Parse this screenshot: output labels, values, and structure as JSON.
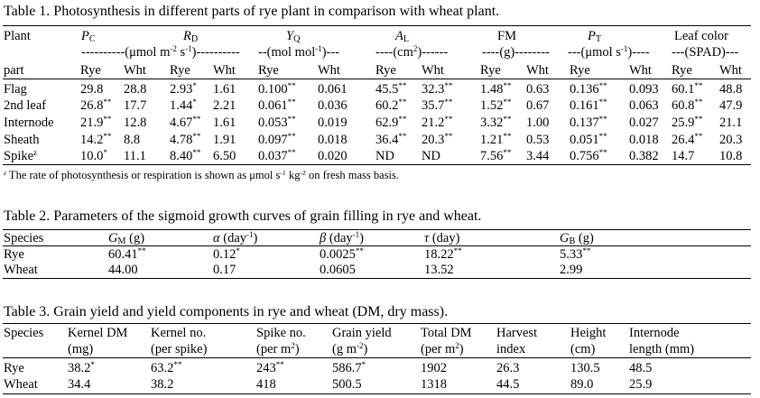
{
  "table1": {
    "caption": "Table 1. Photosynthesis in different parts of rye plant in comparison with wheat plant.",
    "hdr1": {
      "plant": "Plant",
      "pc": "P",
      "pc_sub": "C",
      "rd": "R",
      "rd_sub": "D",
      "yq": "Y",
      "yq_sub": "Q",
      "al": "A",
      "al_sub": "L",
      "fm": "FM",
      "pt": "P",
      "pt_sub": "T",
      "leaf": "Leaf color"
    },
    "hdr2": {
      "unit1_a": "----------(μmol m",
      "unit1_sup1": "-2",
      "unit1_b": " s",
      "unit1_sup2": "-1",
      "unit1_c": ")----------",
      "unit2_a": "--(mol mol",
      "unit2_sup": "-1",
      "unit2_b": ")---",
      "unit3_a": "----(cm",
      "unit3_sup": "2",
      "unit3_b": ")------",
      "unit4": "----(g)--------",
      "unit5_a": "---(μmol s",
      "unit5_sup": "-1",
      "unit5_b": ")----",
      "unit6": "---(SPAD)---"
    },
    "hdr3": {
      "part": "part",
      "rye": "Rye",
      "wht": "Wht"
    },
    "rows": [
      {
        "part": "Flag",
        "part_sup": "",
        "cells": [
          [
            "29.8",
            ""
          ],
          [
            "28.8",
            ""
          ],
          [
            "2.93",
            "*"
          ],
          [
            "1.61",
            ""
          ],
          [
            "0.100",
            "**"
          ],
          [
            "0.061",
            ""
          ],
          [
            "45.5",
            "**"
          ],
          [
            "32.3",
            "**"
          ],
          [
            "1.48",
            "**"
          ],
          [
            "0.63",
            ""
          ],
          [
            "0.136",
            "**"
          ],
          [
            "0.093",
            ""
          ],
          [
            "60.1",
            "**"
          ],
          [
            "48.8",
            ""
          ]
        ]
      },
      {
        "part": "2nd leaf",
        "part_sup": "",
        "cells": [
          [
            "26.8",
            "**"
          ],
          [
            "17.7",
            ""
          ],
          [
            "1.44",
            "*"
          ],
          [
            "2.21",
            ""
          ],
          [
            "0.061",
            "**"
          ],
          [
            "0.036",
            ""
          ],
          [
            "60.2",
            "**"
          ],
          [
            "35.7",
            "**"
          ],
          [
            "1.52",
            "**"
          ],
          [
            "0.67",
            ""
          ],
          [
            "0.161",
            "**"
          ],
          [
            "0.063",
            ""
          ],
          [
            "60.8",
            "**"
          ],
          [
            "47.9",
            ""
          ]
        ]
      },
      {
        "part": "Internode",
        "part_sup": "",
        "cells": [
          [
            "21.9",
            "**"
          ],
          [
            "12.8",
            ""
          ],
          [
            "4.67",
            "**"
          ],
          [
            "1.61",
            ""
          ],
          [
            "0.053",
            "**"
          ],
          [
            "0.019",
            ""
          ],
          [
            "62.9",
            "**"
          ],
          [
            "21.2",
            "**"
          ],
          [
            "3.32",
            "**"
          ],
          [
            "1.00",
            ""
          ],
          [
            "0.137",
            "**"
          ],
          [
            "0.027",
            ""
          ],
          [
            "25.9",
            "**"
          ],
          [
            "21.1",
            ""
          ]
        ]
      },
      {
        "part": "Sheath",
        "part_sup": "",
        "cells": [
          [
            "14.2",
            "**"
          ],
          [
            "8.8",
            ""
          ],
          [
            "4.78",
            "**"
          ],
          [
            "1.91",
            ""
          ],
          [
            "0.097",
            "**"
          ],
          [
            "0.018",
            ""
          ],
          [
            "36.4",
            "**"
          ],
          [
            "20.3",
            "**"
          ],
          [
            "1.21",
            "**"
          ],
          [
            "0.53",
            ""
          ],
          [
            "0.051",
            "**"
          ],
          [
            "0.018",
            ""
          ],
          [
            "26.4",
            "**"
          ],
          [
            "20.3",
            ""
          ]
        ]
      },
      {
        "part": "Spike",
        "part_sup": "z",
        "cells": [
          [
            "10.0",
            "*"
          ],
          [
            "11.1",
            ""
          ],
          [
            "8.40",
            "**"
          ],
          [
            "6.50",
            ""
          ],
          [
            "0.037",
            "**"
          ],
          [
            "0.020",
            ""
          ],
          [
            "ND",
            ""
          ],
          [
            "ND",
            ""
          ],
          [
            "7.56",
            "**"
          ],
          [
            "3.44",
            ""
          ],
          [
            "0.756",
            "**"
          ],
          [
            "0.382",
            ""
          ],
          [
            "14.7",
            ""
          ],
          [
            "10.8",
            ""
          ]
        ]
      }
    ],
    "footnote_sup": "z",
    "footnote_a": " The rate of photosynthesis or respiration is shown as μmol s",
    "footnote_sup1": "-1",
    "footnote_b": " kg",
    "footnote_sup2": "-2",
    "footnote_c": " on fresh mass basis."
  },
  "table2": {
    "caption": "Table 2. Parameters of the sigmoid growth curves of grain filling in rye and wheat.",
    "hdr": {
      "species": "Species",
      "gm": "G",
      "gm_sub": "M",
      "gm_unit": " (g)",
      "alpha": "α",
      "alpha_unit_a": " (day",
      "alpha_unit_sup": "-1",
      "alpha_unit_b": ")",
      "beta": "β",
      "beta_unit_a": " (day",
      "beta_unit_sup": "-1",
      "beta_unit_b": ")",
      "tau": "τ",
      "tau_unit": " (day)",
      "gb": "G",
      "gb_sub": "B",
      "gb_unit": " (g)"
    },
    "rows": [
      {
        "species": "Rye",
        "cells": [
          [
            "60.41",
            "**"
          ],
          [
            "0.12",
            "*"
          ],
          [
            "0.0025",
            "**"
          ],
          [
            "18.22",
            "**"
          ],
          [
            "5.33",
            "**"
          ]
        ]
      },
      {
        "species": "Wheat",
        "cells": [
          [
            "44.00",
            ""
          ],
          [
            "0.17",
            ""
          ],
          [
            "0.0605",
            ""
          ],
          [
            "13.52",
            ""
          ],
          [
            "2.99",
            ""
          ]
        ]
      }
    ]
  },
  "table3": {
    "caption": "Table 3. Grain yield and yield components in rye and wheat (DM, dry mass).",
    "hdr1": {
      "species": "Species",
      "kernel_dm": "Kernel DM",
      "kernel_no": "Kernel no.",
      "spike_no": "Spike no.",
      "grain_yield": "Grain yield",
      "total_dm": "Total DM",
      "harvest": "Harvest",
      "height": "Height",
      "internode": "Internode"
    },
    "hdr2": {
      "mg": "(mg)",
      "per_spike": "(per spike)",
      "spike_unit_a": "(per m",
      "spike_unit_sup": "2",
      "spike_unit_b": ")",
      "grain_unit_a": "(g m",
      "grain_unit_sup": "-2",
      "grain_unit_b": ")",
      "total_unit_a": "(per m",
      "total_unit_sup": "2",
      "total_unit_b": ")",
      "index": "index",
      "cm": "(cm)",
      "length": "length (mm)"
    },
    "rows": [
      {
        "species": "Rye",
        "cells": [
          [
            "38.2",
            "*"
          ],
          [
            "63.2",
            "**"
          ],
          [
            "243",
            "**"
          ],
          [
            "586.7",
            "*"
          ],
          [
            "1902",
            ""
          ],
          [
            "26.3",
            ""
          ],
          [
            "130.5",
            ""
          ],
          [
            "48.5",
            ""
          ]
        ]
      },
      {
        "species": "Wheat",
        "cells": [
          [
            "34.4",
            ""
          ],
          [
            "38.2",
            ""
          ],
          [
            "418",
            ""
          ],
          [
            "500.5",
            ""
          ],
          [
            "1318",
            ""
          ],
          [
            "44.5",
            ""
          ],
          [
            "89.0",
            ""
          ],
          [
            "25.9",
            ""
          ]
        ]
      }
    ]
  }
}
